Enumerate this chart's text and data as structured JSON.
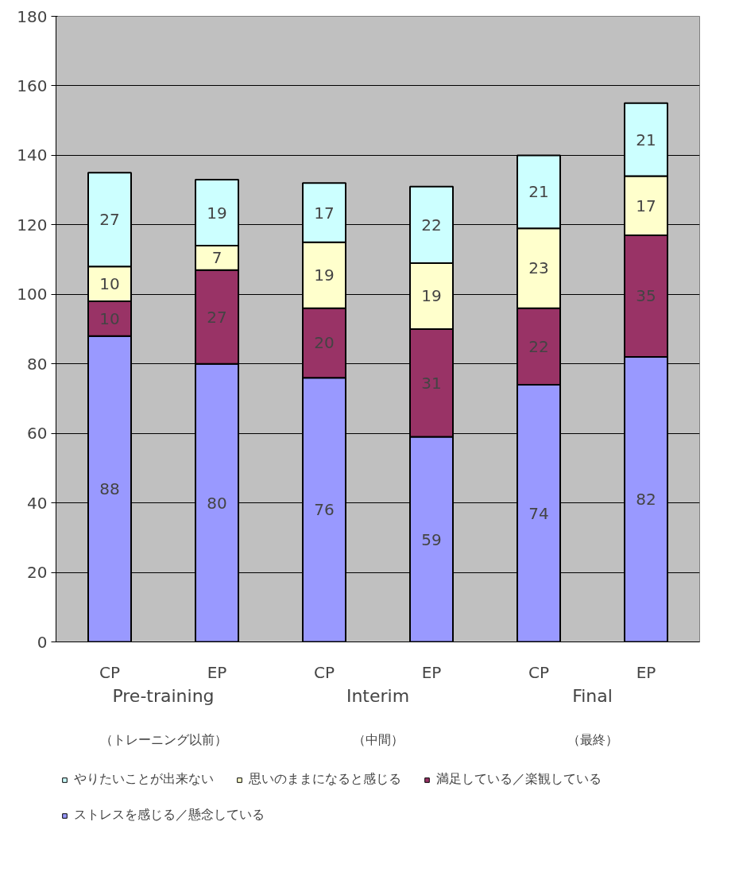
{
  "chart_data": {
    "type": "bar",
    "stacked": true,
    "categories": [
      "CP",
      "EP",
      "CP",
      "EP",
      "CP",
      "EP"
    ],
    "series": [
      {
        "name": "ストレスを感じる／懸念している",
        "color": "#9999ff",
        "values": [
          88,
          80,
          76,
          59,
          74,
          82
        ]
      },
      {
        "name": "満足している／楽観している",
        "color": "#993366",
        "values": [
          10,
          27,
          20,
          31,
          22,
          35
        ]
      },
      {
        "name": "思いのままになると感じる",
        "color": "#ffffcc",
        "values": [
          10,
          7,
          19,
          19,
          23,
          17
        ]
      },
      {
        "name": "やりたいことが出来ない",
        "color": "#ccffff",
        "values": [
          27,
          19,
          17,
          22,
          21,
          21
        ]
      }
    ],
    "ylim": [
      0,
      180
    ],
    "yticks": [
      0,
      20,
      40,
      60,
      80,
      100,
      120,
      140,
      160,
      180
    ],
    "grid": "y",
    "data_labels": true,
    "legend": "bottom",
    "annotations": [
      "Pre-training",
      "Interim",
      "Final",
      "（トレーニング以前）",
      "（中間）",
      "（最終）"
    ]
  }
}
